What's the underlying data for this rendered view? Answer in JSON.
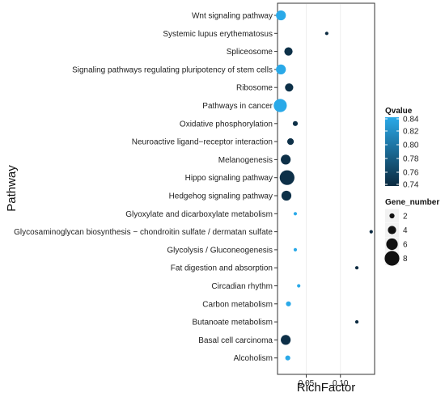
{
  "chart_data": {
    "type": "scatter",
    "title": "",
    "xlabel": "RichFactor",
    "ylabel": "Pathway",
    "xlim": [
      0.008,
      0.15
    ],
    "x_ticks": [
      "0.05",
      "0.10"
    ],
    "x_tick_values": [
      0.05,
      0.1
    ],
    "grid": true,
    "legend_placement": "right",
    "color_legend": {
      "title": "Qvalue",
      "min": 0.74,
      "max": 0.84,
      "ticks": [
        "0.84",
        "0.82",
        "0.80",
        "0.78",
        "0.76",
        "0.74"
      ],
      "low_color": "#0b2a40",
      "high_color": "#2aa9e8"
    },
    "size_legend": {
      "title": "Gene_number",
      "values": [
        "2",
        "4",
        "6",
        "8"
      ]
    },
    "categories": [
      "Wnt signaling pathway",
      "Systemic lupus erythematosus",
      "Spliceosome",
      "Signaling pathways regulating pluripotency of stem cells",
      "Ribosome",
      "Pathways in cancer",
      "Oxidative phosphorylation",
      "Neuroactive ligand−receptor interaction",
      "Melanogenesis",
      "Hippo signaling pathway",
      "Hedgehog signaling pathway",
      "Glyoxylate and dicarboxylate metabolism",
      "Glycosaminoglycan biosynthesis − chondroitin sulfate / dermatan sulfate",
      "Glycolysis / Gluconeogenesis",
      "Fat digestion and absorption",
      "Circadian rhythm",
      "Carbon metabolism",
      "Butanoate metabolism",
      "Basal cell carcinoma",
      "Alcoholism"
    ],
    "points": [
      {
        "pathway": "Wnt signaling pathway",
        "rich_factor": 0.013,
        "gene_number": 5,
        "qvalue": 0.84
      },
      {
        "pathway": "Systemic lupus erythematosus",
        "rich_factor": 0.08,
        "gene_number": 1,
        "qvalue": 0.74
      },
      {
        "pathway": "Spliceosome",
        "rich_factor": 0.024,
        "gene_number": 4,
        "qvalue": 0.745
      },
      {
        "pathway": "Signaling pathways regulating pluripotency of stem cells",
        "rich_factor": 0.013,
        "gene_number": 5,
        "qvalue": 0.84
      },
      {
        "pathway": "Ribosome",
        "rich_factor": 0.025,
        "gene_number": 4,
        "qvalue": 0.745
      },
      {
        "pathway": "Pathways in cancer",
        "rich_factor": 0.012,
        "gene_number": 7,
        "qvalue": 0.84
      },
      {
        "pathway": "Oxidative phosphorylation",
        "rich_factor": 0.034,
        "gene_number": 2,
        "qvalue": 0.745
      },
      {
        "pathway": "Neuroactive ligand−receptor interaction",
        "rich_factor": 0.027,
        "gene_number": 3,
        "qvalue": 0.745
      },
      {
        "pathway": "Melanogenesis",
        "rich_factor": 0.02,
        "gene_number": 5,
        "qvalue": 0.745
      },
      {
        "pathway": "Hippo signaling pathway",
        "rich_factor": 0.022,
        "gene_number": 8,
        "qvalue": 0.745
      },
      {
        "pathway": "Hedgehog signaling pathway",
        "rich_factor": 0.021,
        "gene_number": 5,
        "qvalue": 0.745
      },
      {
        "pathway": "Glyoxylate and dicarboxylate metabolism",
        "rich_factor": 0.034,
        "gene_number": 1,
        "qvalue": 0.84
      },
      {
        "pathway": "Glycosaminoglycan biosynthesis − chondroitin sulfate / dermatan sulfate",
        "rich_factor": 0.145,
        "gene_number": 1,
        "qvalue": 0.74
      },
      {
        "pathway": "Glycolysis / Gluconeogenesis",
        "rich_factor": 0.034,
        "gene_number": 1,
        "qvalue": 0.84
      },
      {
        "pathway": "Fat digestion and absorption",
        "rich_factor": 0.124,
        "gene_number": 1,
        "qvalue": 0.74
      },
      {
        "pathway": "Circadian rhythm",
        "rich_factor": 0.039,
        "gene_number": 1,
        "qvalue": 0.84
      },
      {
        "pathway": "Carbon metabolism",
        "rich_factor": 0.024,
        "gene_number": 2,
        "qvalue": 0.84
      },
      {
        "pathway": "Butanoate metabolism",
        "rich_factor": 0.124,
        "gene_number": 1,
        "qvalue": 0.74
      },
      {
        "pathway": "Basal cell carcinoma",
        "rich_factor": 0.02,
        "gene_number": 5,
        "qvalue": 0.745
      },
      {
        "pathway": "Alcoholism",
        "rich_factor": 0.023,
        "gene_number": 2,
        "qvalue": 0.84
      }
    ]
  }
}
